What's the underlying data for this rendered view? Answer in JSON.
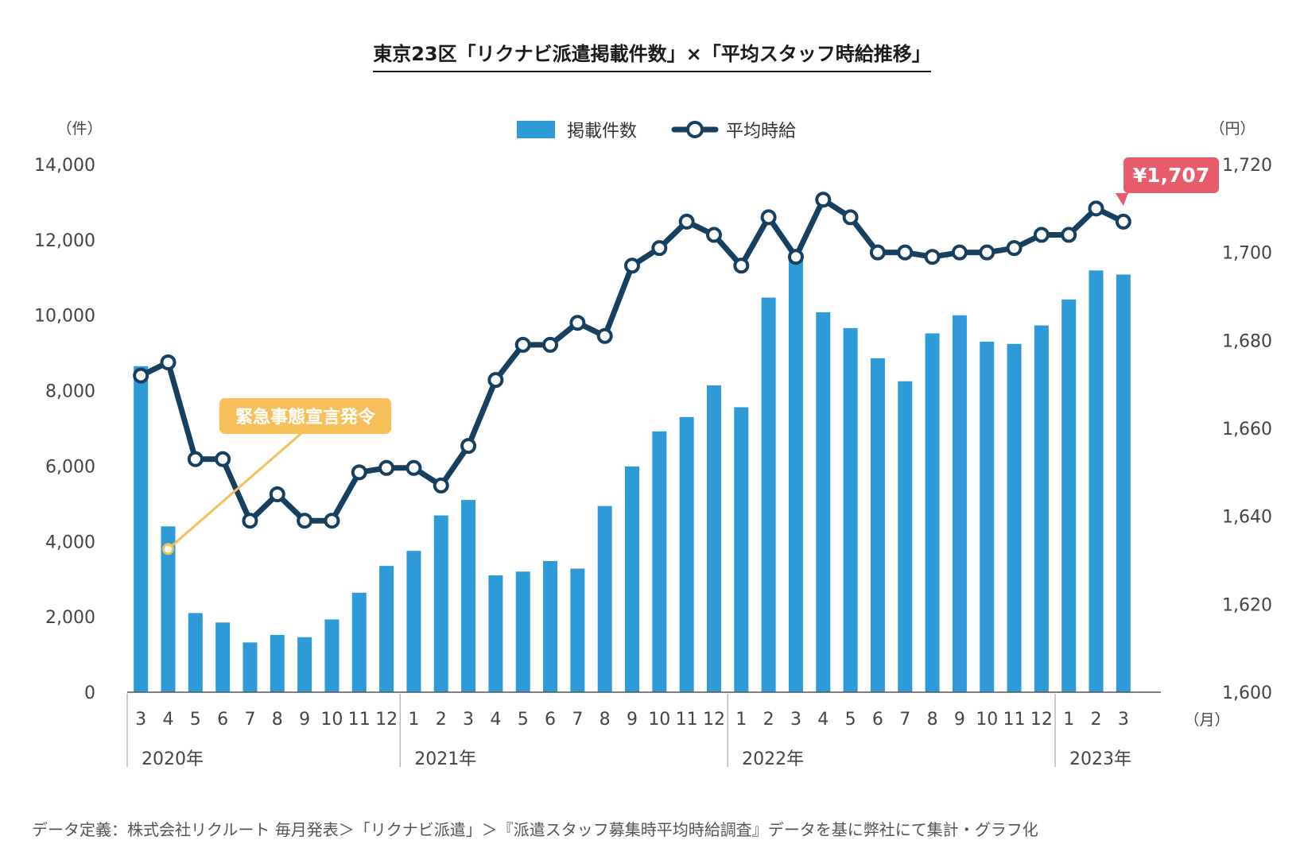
{
  "title": "東京23区「リクナビ派遣掲載件数」×「平均スタッフ時給推移」",
  "source_note": "データ定義：株式会社リクルート 毎月発表＞「リクナビ派遣」＞『派遣スタッフ募集時平均時給調査』データを基に弊社にて集計・グラフ化",
  "colors": {
    "bar": "#2f9ad8",
    "line": "#173f5f",
    "callout_emergency": "#f5bf5a",
    "callout_price": "#e85b6b",
    "axis": "#777777",
    "grid_label": "#444444"
  },
  "chart_data": {
    "type": "bar+line",
    "left_axis": {
      "unit_label": "（件）",
      "ylim": [
        0,
        14000
      ],
      "ticks": [
        "0",
        "2,000",
        "4,000",
        "6,000",
        "8,000",
        "10,000",
        "12,000",
        "14,000"
      ]
    },
    "right_axis": {
      "unit_label": "（円）",
      "ylim": [
        1600,
        1720
      ],
      "ticks": [
        "1,600",
        "1,620",
        "1,640",
        "1,660",
        "1,680",
        "1,700",
        "1,720"
      ]
    },
    "x_unit_label": "（月）",
    "months": [
      "3",
      "4",
      "5",
      "6",
      "7",
      "8",
      "9",
      "10",
      "11",
      "12",
      "1",
      "2",
      "3",
      "4",
      "5",
      "6",
      "7",
      "8",
      "9",
      "10",
      "11",
      "12",
      "1",
      "2",
      "3",
      "4",
      "5",
      "6",
      "7",
      "8",
      "9",
      "10",
      "11",
      "12",
      "1",
      "2",
      "3"
    ],
    "years": [
      {
        "label": "2020年",
        "start": 0,
        "end": 9
      },
      {
        "label": "2021年",
        "start": 10,
        "end": 21
      },
      {
        "label": "2022年",
        "start": 22,
        "end": 33
      },
      {
        "label": "2023年",
        "start": 34,
        "end": 36
      }
    ],
    "legend": {
      "bar_label": "掲載件数",
      "line_label": "平均時給",
      "position": "top-center"
    },
    "series": [
      {
        "name": "掲載件数",
        "type": "bar",
        "axis": "left",
        "values": [
          8650,
          4400,
          2100,
          1850,
          1320,
          1520,
          1460,
          1930,
          2640,
          3350,
          3750,
          4690,
          5100,
          3100,
          3200,
          3480,
          3280,
          4940,
          5990,
          6920,
          7300,
          8140,
          7560,
          10470,
          11640,
          10080,
          9660,
          8860,
          8250,
          9520,
          10000,
          9300,
          9240,
          9730,
          10420,
          11190,
          11080
        ]
      },
      {
        "name": "平均時給",
        "type": "line",
        "axis": "right",
        "values": [
          1672,
          1675,
          1653,
          1653,
          1639,
          1645,
          1639,
          1639,
          1650,
          1651,
          1651,
          1647,
          1656,
          1671,
          1679,
          1679,
          1684,
          1681,
          1697,
          1701,
          1707,
          1704,
          1697,
          1708,
          1699,
          1712,
          1708,
          1700,
          1700,
          1699,
          1700,
          1700,
          1701,
          1704,
          1704,
          1710,
          1707
        ]
      }
    ],
    "annotations": [
      {
        "text": "緊急事態宣言発令",
        "target_index": 1,
        "series": "掲載件数",
        "value": 3800
      },
      {
        "text": "¥1,707",
        "target_index": 36,
        "series": "平均時給",
        "value": 1707
      }
    ]
  }
}
